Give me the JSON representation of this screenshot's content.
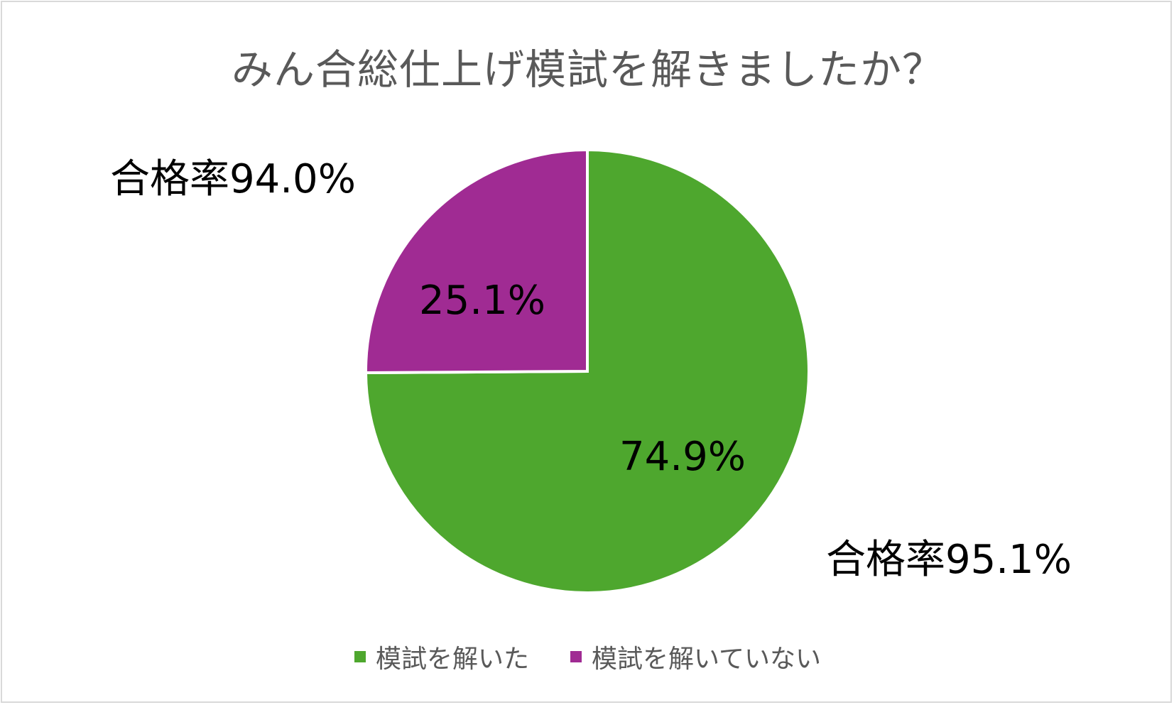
{
  "chart_data": {
    "type": "pie",
    "title": "みん合総仕上げ模試を解きましたか？",
    "slices": [
      {
        "label": "模試を解いた",
        "value": 74.9,
        "display": "74.9%",
        "color": "#4ea72e"
      },
      {
        "label": "模試を解いていない",
        "value": 25.1,
        "display": "25.1%",
        "color": "#a02b93"
      }
    ],
    "annotations": [
      {
        "text": "合格率95.1%",
        "slice": "模試を解いた"
      },
      {
        "text": "合格率94.0%",
        "slice": "模試を解いていない"
      }
    ],
    "legend_position": "bottom"
  }
}
